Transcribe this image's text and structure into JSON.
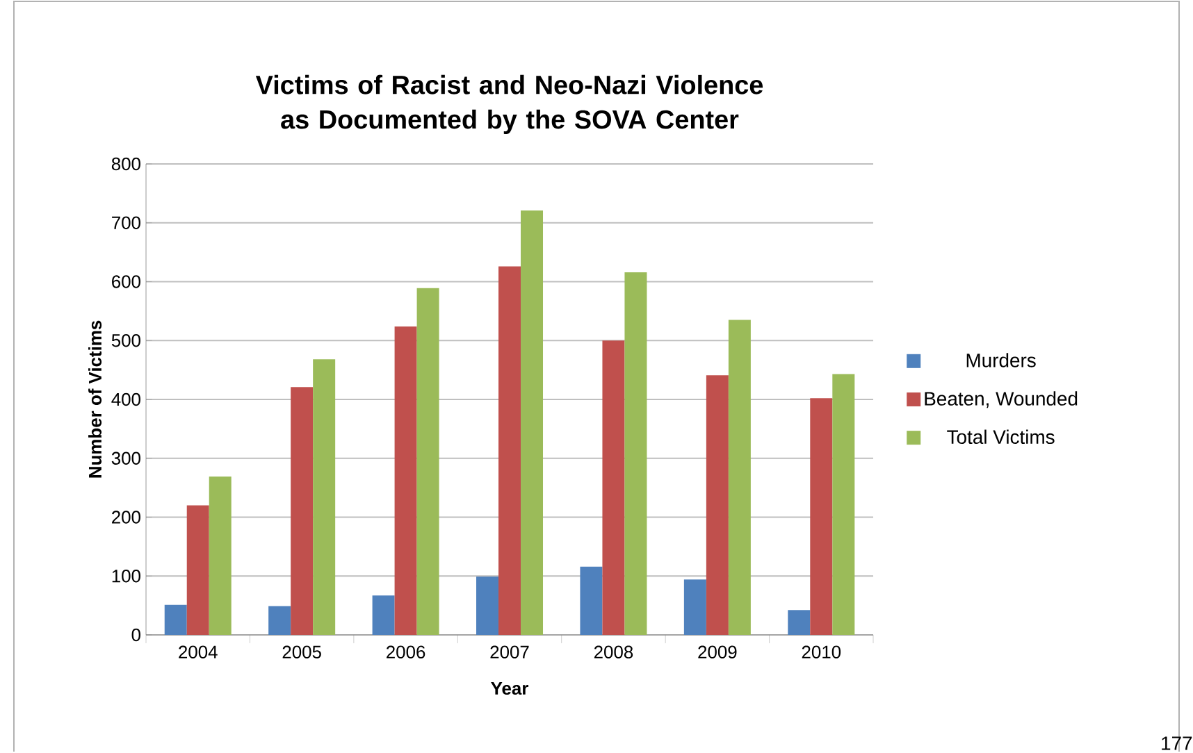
{
  "chart_data": {
    "type": "bar",
    "title": "Victims of Racist and Neo-Nazi Violence as Documented by the SOVA Center",
    "xlabel": "Year",
    "ylabel": "Number of Victims",
    "categories": [
      "2004",
      "2005",
      "2006",
      "2007",
      "2008",
      "2009",
      "2010"
    ],
    "series": [
      {
        "name": "Murders",
        "color": "#4f81bd",
        "values": [
          51,
          49,
          67,
          99,
          116,
          94,
          42
        ]
      },
      {
        "name": "Beaten, Wounded",
        "color": "#c0504d",
        "values": [
          220,
          421,
          524,
          626,
          500,
          441,
          402
        ]
      },
      {
        "name": "Total Victims",
        "color": "#9bbb59",
        "values": [
          269,
          468,
          589,
          721,
          616,
          535,
          443
        ]
      }
    ],
    "ylim": [
      0,
      800
    ],
    "yticks": [
      0,
      100,
      200,
      300,
      400,
      500,
      600,
      700,
      800
    ],
    "grid": "y",
    "legend": "right",
    "annotations": [
      "177"
    ]
  }
}
